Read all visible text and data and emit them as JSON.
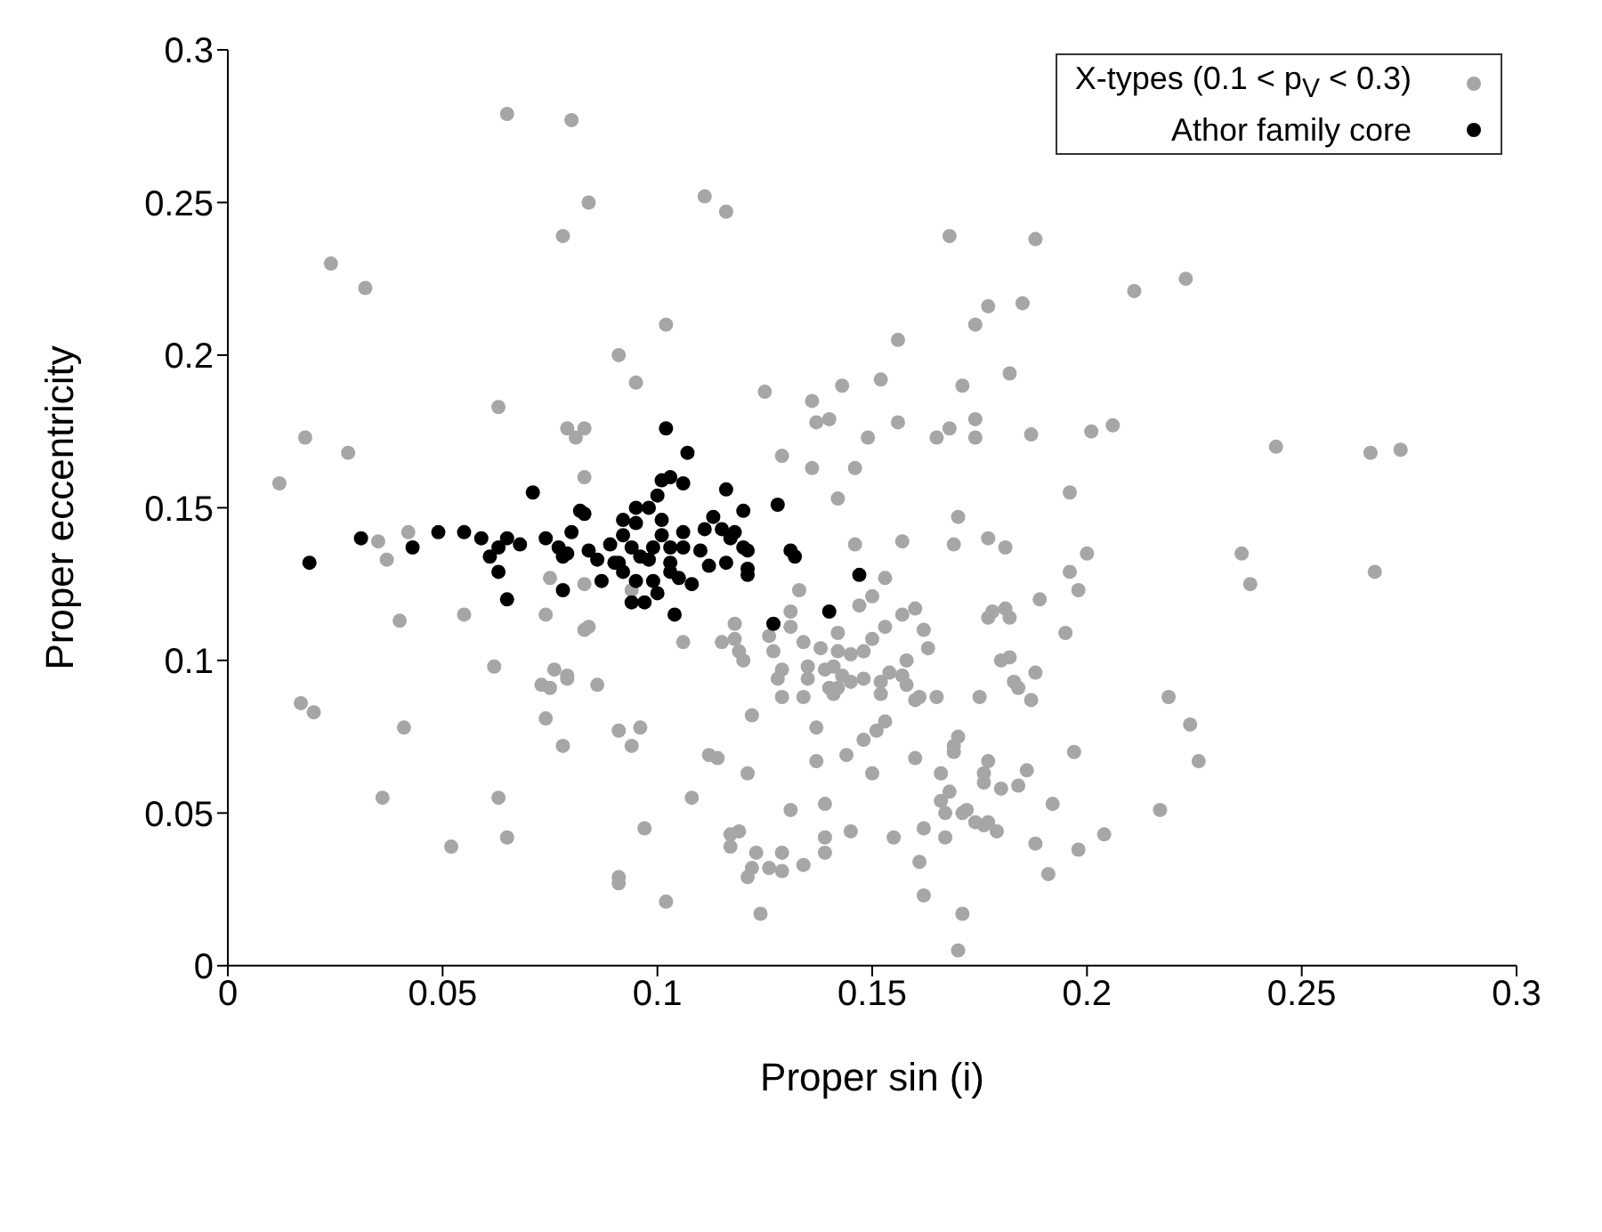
{
  "chart_data": {
    "type": "scatter",
    "xlabel": "Proper sin (i)",
    "ylabel": "Proper eccentricity",
    "xlim": [
      0,
      0.3
    ],
    "ylim": [
      0,
      0.3
    ],
    "xticks": [
      0,
      0.05,
      0.1,
      0.15,
      0.2,
      0.25,
      0.3
    ],
    "yticks": [
      0,
      0.05,
      0.1,
      0.15,
      0.2,
      0.25,
      0.3
    ],
    "grid": false,
    "legend": "top right",
    "marker": "circle",
    "series": [
      {
        "name": "X-types (0.1 < p$_{V}$ < 0.3)",
        "color": "#a6a6a6",
        "x": [
          0.065,
          0.08,
          0.084,
          0.078,
          0.111,
          0.116,
          0.024,
          0.032,
          0.102,
          0.091,
          0.095,
          0.063,
          0.125,
          0.136,
          0.143,
          0.152,
          0.137,
          0.14,
          0.149,
          0.018,
          0.028,
          0.079,
          0.083,
          0.081,
          0.129,
          0.136,
          0.146,
          0.142,
          0.083,
          0.012,
          0.168,
          0.188,
          0.211,
          0.223,
          0.177,
          0.185,
          0.174,
          0.156,
          0.171,
          0.182,
          0.156,
          0.165,
          0.168,
          0.174,
          0.174,
          0.187,
          0.201,
          0.206,
          0.244,
          0.266,
          0.273,
          0.196,
          0.035,
          0.037,
          0.042,
          0.04,
          0.055,
          0.074,
          0.075,
          0.083,
          0.083,
          0.084,
          0.094,
          0.062,
          0.076,
          0.073,
          0.075,
          0.079,
          0.079,
          0.086,
          0.017,
          0.02,
          0.041,
          0.074,
          0.078,
          0.091,
          0.096,
          0.094,
          0.106,
          0.115,
          0.118,
          0.118,
          0.119,
          0.12,
          0.122,
          0.112,
          0.114,
          0.121,
          0.108,
          0.126,
          0.127,
          0.131,
          0.131,
          0.133,
          0.146,
          0.142,
          0.134,
          0.138,
          0.135,
          0.135,
          0.129,
          0.128,
          0.129,
          0.134,
          0.139,
          0.141,
          0.143,
          0.14,
          0.142,
          0.145,
          0.141,
          0.142,
          0.145,
          0.148,
          0.15,
          0.15,
          0.147,
          0.153,
          0.153,
          0.148,
          0.152,
          0.137,
          0.137,
          0.144,
          0.148,
          0.151,
          0.153,
          0.15,
          0.131,
          0.139,
          0.036,
          0.063,
          0.052,
          0.065,
          0.097,
          0.091,
          0.091,
          0.102,
          0.117,
          0.119,
          0.117,
          0.123,
          0.129,
          0.139,
          0.139,
          0.145,
          0.122,
          0.121,
          0.126,
          0.129,
          0.134,
          0.124,
          0.17,
          0.157,
          0.169,
          0.177,
          0.181,
          0.2,
          0.196,
          0.198,
          0.236,
          0.238,
          0.267,
          0.16,
          0.157,
          0.162,
          0.163,
          0.177,
          0.178,
          0.181,
          0.182,
          0.189,
          0.195,
          0.158,
          0.157,
          0.154,
          0.152,
          0.158,
          0.16,
          0.161,
          0.165,
          0.175,
          0.18,
          0.182,
          0.188,
          0.183,
          0.184,
          0.187,
          0.219,
          0.224,
          0.226,
          0.217,
          0.17,
          0.169,
          0.169,
          0.16,
          0.177,
          0.197,
          0.166,
          0.176,
          0.176,
          0.18,
          0.184,
          0.186,
          0.166,
          0.168,
          0.167,
          0.171,
          0.172,
          0.174,
          0.176,
          0.177,
          0.179,
          0.192,
          0.155,
          0.162,
          0.167,
          0.188,
          0.198,
          0.204,
          0.191,
          0.161,
          0.162,
          0.171,
          0.17
        ],
        "values": [
          0.279,
          0.277,
          0.25,
          0.239,
          0.252,
          0.247,
          0.23,
          0.222,
          0.21,
          0.2,
          0.191,
          0.183,
          0.188,
          0.185,
          0.19,
          0.192,
          0.178,
          0.179,
          0.173,
          0.173,
          0.168,
          0.176,
          0.176,
          0.173,
          0.167,
          0.163,
          0.163,
          0.153,
          0.16,
          0.158,
          0.239,
          0.238,
          0.221,
          0.225,
          0.216,
          0.217,
          0.21,
          0.205,
          0.19,
          0.194,
          0.178,
          0.173,
          0.176,
          0.179,
          0.173,
          0.174,
          0.175,
          0.177,
          0.17,
          0.168,
          0.169,
          0.155,
          0.139,
          0.133,
          0.142,
          0.113,
          0.115,
          0.115,
          0.127,
          0.125,
          0.11,
          0.111,
          0.123,
          0.098,
          0.097,
          0.092,
          0.091,
          0.095,
          0.094,
          0.092,
          0.086,
          0.083,
          0.078,
          0.081,
          0.072,
          0.077,
          0.078,
          0.072,
          0.106,
          0.106,
          0.107,
          0.112,
          0.103,
          0.1,
          0.082,
          0.069,
          0.068,
          0.063,
          0.055,
          0.108,
          0.103,
          0.116,
          0.111,
          0.123,
          0.138,
          0.109,
          0.106,
          0.104,
          0.098,
          0.094,
          0.097,
          0.094,
          0.088,
          0.088,
          0.097,
          0.098,
          0.095,
          0.091,
          0.091,
          0.093,
          0.089,
          0.103,
          0.102,
          0.103,
          0.107,
          0.121,
          0.118,
          0.127,
          0.111,
          0.094,
          0.089,
          0.078,
          0.067,
          0.069,
          0.074,
          0.077,
          0.08,
          0.063,
          0.051,
          0.053,
          0.055,
          0.055,
          0.039,
          0.042,
          0.045,
          0.029,
          0.027,
          0.021,
          0.043,
          0.044,
          0.039,
          0.037,
          0.037,
          0.042,
          0.037,
          0.044,
          0.032,
          0.029,
          0.032,
          0.031,
          0.033,
          0.017,
          0.147,
          0.139,
          0.138,
          0.14,
          0.137,
          0.135,
          0.129,
          0.123,
          0.135,
          0.125,
          0.129,
          0.117,
          0.115,
          0.11,
          0.104,
          0.114,
          0.116,
          0.117,
          0.114,
          0.12,
          0.109,
          0.1,
          0.095,
          0.096,
          0.093,
          0.092,
          0.087,
          0.088,
          0.088,
          0.088,
          0.1,
          0.101,
          0.096,
          0.093,
          0.091,
          0.087,
          0.088,
          0.079,
          0.067,
          0.051,
          0.075,
          0.072,
          0.07,
          0.068,
          0.067,
          0.07,
          0.063,
          0.063,
          0.06,
          0.058,
          0.059,
          0.064,
          0.054,
          0.057,
          0.05,
          0.05,
          0.051,
          0.047,
          0.046,
          0.047,
          0.044,
          0.053,
          0.042,
          0.045,
          0.042,
          0.04,
          0.038,
          0.043,
          0.03,
          0.034,
          0.023,
          0.017,
          0.005
        ]
      },
      {
        "name": "Athor family core",
        "color": "#000000",
        "x": [
          0.102,
          0.107,
          0.101,
          0.103,
          0.106,
          0.1,
          0.116,
          0.071,
          0.095,
          0.098,
          0.12,
          0.128,
          0.082,
          0.019,
          0.031,
          0.043,
          0.049,
          0.055,
          0.059,
          0.061,
          0.063,
          0.065,
          0.063,
          0.065,
          0.068,
          0.074,
          0.077,
          0.078,
          0.079,
          0.08,
          0.078,
          0.083,
          0.084,
          0.086,
          0.087,
          0.089,
          0.09,
          0.091,
          0.092,
          0.092,
          0.092,
          0.095,
          0.094,
          0.096,
          0.098,
          0.099,
          0.101,
          0.101,
          0.095,
          0.094,
          0.097,
          0.099,
          0.1,
          0.103,
          0.103,
          0.103,
          0.105,
          0.104,
          0.106,
          0.106,
          0.108,
          0.11,
          0.112,
          0.111,
          0.113,
          0.116,
          0.115,
          0.118,
          0.117,
          0.12,
          0.121,
          0.121,
          0.121,
          0.131,
          0.132,
          0.14,
          0.127,
          0.147
        ],
        "values": [
          0.176,
          0.168,
          0.159,
          0.16,
          0.158,
          0.154,
          0.156,
          0.155,
          0.15,
          0.15,
          0.149,
          0.151,
          0.149,
          0.132,
          0.14,
          0.137,
          0.142,
          0.142,
          0.14,
          0.134,
          0.137,
          0.14,
          0.129,
          0.12,
          0.138,
          0.14,
          0.137,
          0.134,
          0.135,
          0.142,
          0.123,
          0.148,
          0.136,
          0.133,
          0.126,
          0.138,
          0.132,
          0.132,
          0.129,
          0.146,
          0.141,
          0.145,
          0.137,
          0.134,
          0.133,
          0.137,
          0.141,
          0.146,
          0.126,
          0.119,
          0.119,
          0.126,
          0.122,
          0.137,
          0.132,
          0.129,
          0.127,
          0.115,
          0.142,
          0.137,
          0.125,
          0.136,
          0.131,
          0.143,
          0.147,
          0.132,
          0.143,
          0.142,
          0.14,
          0.137,
          0.136,
          0.13,
          0.128,
          0.136,
          0.134,
          0.116,
          0.112,
          0.128
        ]
      }
    ]
  }
}
